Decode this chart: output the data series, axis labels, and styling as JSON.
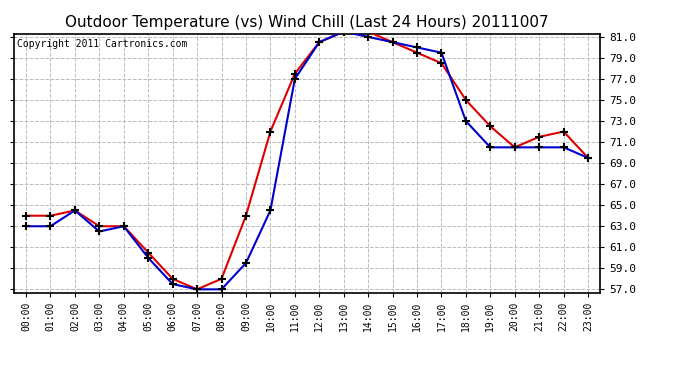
{
  "title": "Outdoor Temperature (vs) Wind Chill (Last 24 Hours) 20111007",
  "copyright_text": "Copyright 2011 Cartronics.com",
  "x_labels": [
    "00:00",
    "01:00",
    "02:00",
    "03:00",
    "04:00",
    "05:00",
    "06:00",
    "07:00",
    "08:00",
    "09:00",
    "10:00",
    "11:00",
    "12:00",
    "13:00",
    "14:00",
    "15:00",
    "16:00",
    "17:00",
    "18:00",
    "19:00",
    "20:00",
    "21:00",
    "22:00",
    "23:00"
  ],
  "temp_red": [
    64.0,
    64.0,
    64.5,
    63.0,
    63.0,
    60.5,
    58.0,
    57.0,
    58.0,
    64.0,
    72.0,
    77.5,
    80.5,
    81.5,
    81.5,
    80.5,
    79.5,
    78.5,
    75.0,
    72.5,
    70.5,
    71.5,
    72.0,
    69.5
  ],
  "wind_chill_blue": [
    63.0,
    63.0,
    64.5,
    62.5,
    63.0,
    60.0,
    57.5,
    57.0,
    57.0,
    59.5,
    64.5,
    77.0,
    80.5,
    81.5,
    81.0,
    80.5,
    80.0,
    79.5,
    73.0,
    70.5,
    70.5,
    70.5,
    70.5,
    69.5
  ],
  "ylim_min": 57.0,
  "ylim_max": 81.0,
  "yticks": [
    57.0,
    59.0,
    61.0,
    63.0,
    65.0,
    67.0,
    69.0,
    71.0,
    73.0,
    75.0,
    77.0,
    79.0,
    81.0
  ],
  "red_color": "#dd0000",
  "blue_color": "#0000cc",
  "bg_color": "#ffffff",
  "plot_bg_color": "#ffffff",
  "grid_color": "#bbbbbb",
  "title_fontsize": 11,
  "copyright_fontsize": 7,
  "tick_fontsize": 8,
  "xtick_fontsize": 7
}
